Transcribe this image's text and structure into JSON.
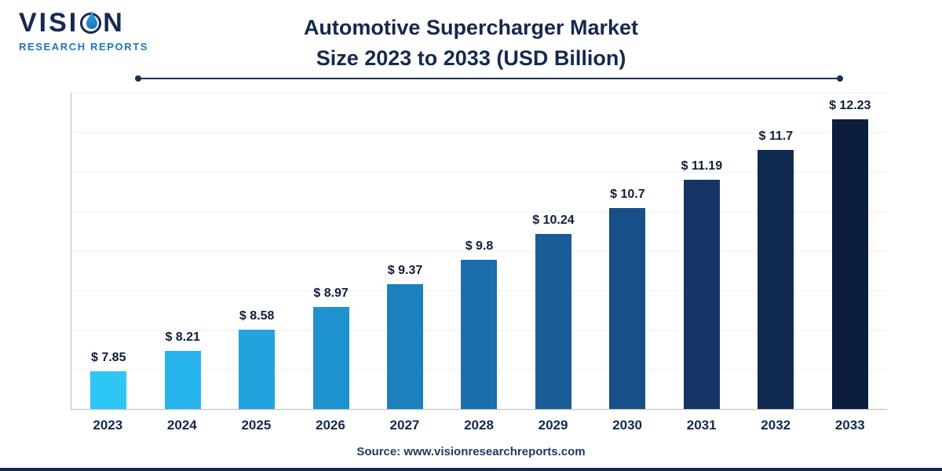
{
  "logo": {
    "name_part1": "VISI",
    "name_part2": "N",
    "subtitle": "RESEARCH REPORTS"
  },
  "title": {
    "line1": "Automotive Supercharger Market",
    "line2": "Size 2023 to 2033 (USD Billion)"
  },
  "source": "Source: www.visionresearchreports.com",
  "colors": {
    "title_navy": "#15294e",
    "accent_blue": "#1b75bc",
    "axis_gray": "#b9bdc9",
    "bottom_bar": "#16294e"
  },
  "chart_data": {
    "type": "bar",
    "title": "Automotive Supercharger Market Size 2023 to 2033 (USD Billion)",
    "xlabel": "",
    "ylabel": "",
    "categories": [
      "2023",
      "2024",
      "2025",
      "2026",
      "2027",
      "2028",
      "2029",
      "2030",
      "2031",
      "2032",
      "2033"
    ],
    "values": [
      7.85,
      8.21,
      8.58,
      8.97,
      9.37,
      9.8,
      10.24,
      10.7,
      11.19,
      11.7,
      12.23
    ],
    "value_labels": [
      "$ 7.85",
      "$ 8.21",
      "$ 8.58",
      "$ 8.97",
      "$ 9.37",
      "$ 9.8",
      "$ 10.24",
      "$ 10.7",
      "$ 11.19",
      "$ 11.7",
      "$ 12.23"
    ],
    "bar_colors": [
      "#2ec6f5",
      "#27b4ec",
      "#23a3dd",
      "#1e92cf",
      "#1b80bd",
      "#1a6ea9",
      "#195c98",
      "#175089",
      "#143566",
      "#102a52",
      "#0c1d3e"
    ],
    "ylim": [
      7.2,
      12.7
    ],
    "grid": true,
    "legend_position": "none",
    "unit": "USD Billion"
  }
}
